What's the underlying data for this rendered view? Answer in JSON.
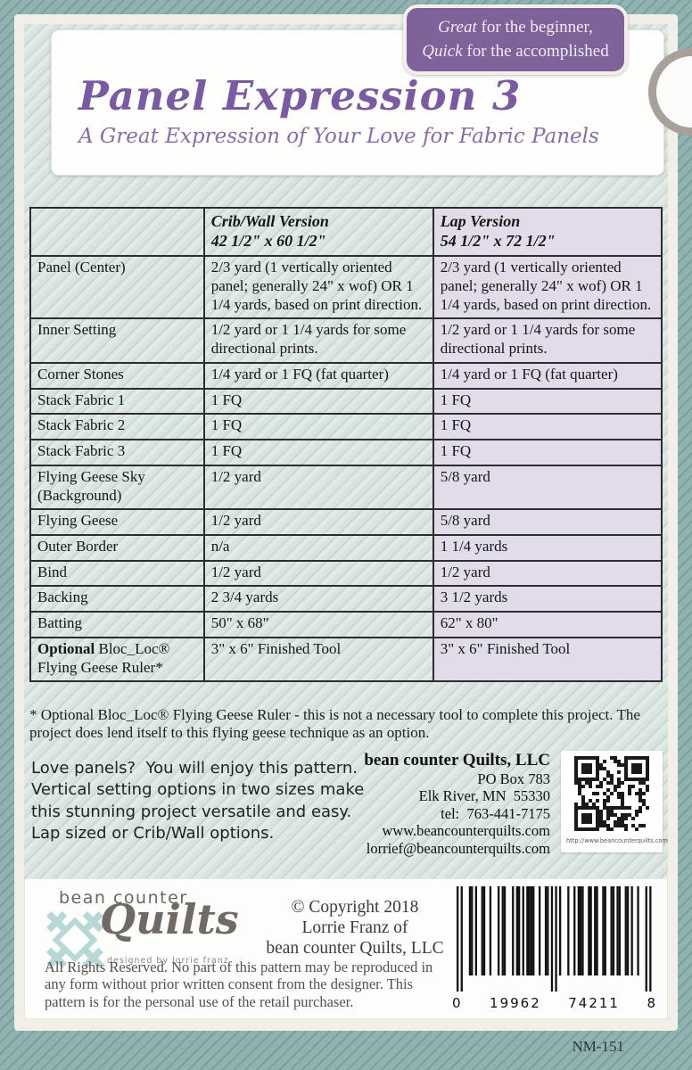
{
  "colors": {
    "purple": "#7a5ba3",
    "purple-light": "#8a6bae",
    "banner-purple": "#7d6399",
    "banner-text": "#f2ecf6",
    "lavender": "#e2dbe9",
    "teal-band": "#90b2b0",
    "teal-band-stripe": "#7aa09e",
    "cream": "#f1efe8",
    "table-border": "#2d2d2d",
    "circle-gray": "#a7a19a",
    "logo-gray": "#6b6661",
    "logo-teal": "#b7d8d6"
  },
  "banner": {
    "em1": "Great",
    "rest1": " for the beginner,",
    "em2": "Quick",
    "rest2": " for the accomplished"
  },
  "header": {
    "title": "Panel Expression 3",
    "subtitle": "A Great Expression of Your Love for Fabric Panels"
  },
  "table": {
    "columns": [
      {
        "label": "",
        "size": ""
      },
      {
        "label": "Crib/Wall Version",
        "size": "42 1/2\" x 60 1/2\""
      },
      {
        "label": "Lap Version",
        "size": "54 1/2\" x 72 1/2\""
      }
    ],
    "rows": [
      {
        "bold": "",
        "label": "Panel (Center)",
        "crib": "2/3 yard (1 vertically oriented panel; generally 24\" x wof) OR 1 1/4 yards, based on print direction.",
        "lap": "2/3 yard (1 vertically oriented panel; generally 24\" x wof) OR 1 1/4 yards, based on print direction."
      },
      {
        "bold": "",
        "label": "Inner Setting",
        "crib": "1/2 yard or 1 1/4 yards for some directional prints.",
        "lap": "1/2 yard or 1 1/4 yards for some directional prints."
      },
      {
        "bold": "",
        "label": "Corner Stones",
        "crib": "1/4 yard or 1 FQ (fat quarter)",
        "lap": "1/4 yard or 1 FQ (fat quarter)"
      },
      {
        "bold": "",
        "label": "Stack Fabric 1",
        "crib": "1 FQ",
        "lap": "1 FQ"
      },
      {
        "bold": "",
        "label": "Stack Fabric 2",
        "crib": "1 FQ",
        "lap": "1 FQ"
      },
      {
        "bold": "",
        "label": "Stack Fabric 3",
        "crib": "1 FQ",
        "lap": "1 FQ"
      },
      {
        "bold": "",
        "label": "Flying Geese Sky (Background)",
        "crib": "1/2 yard",
        "lap": "5/8 yard"
      },
      {
        "bold": "",
        "label": "Flying Geese",
        "crib": "1/2 yard",
        "lap": "5/8 yard"
      },
      {
        "bold": "",
        "label": "Outer Border",
        "crib": "n/a",
        "lap": "1 1/4 yards"
      },
      {
        "bold": "",
        "label": "Bind",
        "crib": "1/2 yard",
        "lap": "1/2 yard"
      },
      {
        "bold": "",
        "label": "Backing",
        "crib": "2 3/4 yards",
        "lap": "3 1/2 yards"
      },
      {
        "bold": "",
        "label": "Batting",
        "crib": "50\" x 68\"",
        "lap": "62\" x 80\""
      },
      {
        "bold": "Optional",
        "label": " Bloc_Loc® Flying Geese Ruler*",
        "crib": "3\" x 6\" Finished Tool",
        "lap": "3\" x 6\" Finished Tool"
      }
    ],
    "footnote": "* Optional Bloc_Loc®  Flying Geese Ruler - this is not a necessary tool to complete this project. The project does lend itself to this flying geese technique as an option."
  },
  "blurb": "Love panels?  You will enjoy this pattern. Vertical setting options in two sizes make this stunning project versatile and easy.  Lap sized or Crib/Wall options.",
  "publisher": {
    "name": "bean counter Quilts, LLC",
    "lines": [
      "PO Box 783",
      "Elk River, MN  55330",
      "tel:  763-441-7175",
      "www.beancounterquilts.com",
      "lorrief@beancounterquilts.com"
    ]
  },
  "qr_caption": "http://www.beancounterquilts.com",
  "footer": {
    "logo_line": "bean counter",
    "logo_script": "Quilts",
    "logo_tagline": "designed by lorrie franz",
    "copyright": [
      "© Copyright 2018",
      "Lorrie Franz of",
      "bean counter Quilts, LLC"
    ],
    "rights": "All Rights Reserved. No part of this pattern may be reproduced in any form without prior written consent from the designer. This pattern is for the personal use of the retail purchaser.",
    "barcode": {
      "lead": "0",
      "group1": "19962",
      "group2": "74211",
      "check": "8"
    },
    "item_number": "NM-151"
  }
}
